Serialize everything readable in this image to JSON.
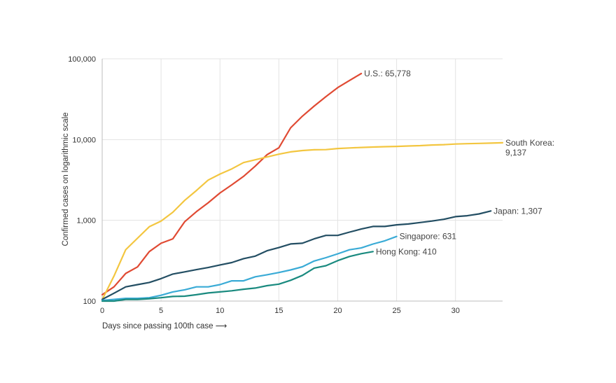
{
  "chart_data": {
    "type": "line",
    "xlabel": "Days since passing 100th case ⟶",
    "ylabel": "Confirmed cases on logarithmic scale",
    "xlim": [
      0,
      34
    ],
    "ylim": [
      100,
      100000
    ],
    "yscale": "log",
    "x_ticks": [
      0,
      5,
      10,
      15,
      20,
      25,
      30
    ],
    "y_ticks": [
      100,
      1000,
      10000,
      100000
    ],
    "y_tick_labels": [
      "100",
      "1,000",
      "10,000",
      "100,000"
    ],
    "grid": "vertical and horizontal",
    "series": [
      {
        "name": "U.S.",
        "end_label": [
          "U.S.: 65,778"
        ],
        "color": "#e04a33",
        "values": [
          120,
          150,
          220,
          265,
          410,
          520,
          590,
          960,
          1280,
          1650,
          2180,
          2750,
          3500,
          4700,
          6500,
          7900,
          14000,
          19500,
          26000,
          34000,
          44000,
          54000,
          65778
        ]
      },
      {
        "name": "South Korea",
        "end_label": [
          "South Korea:",
          "9,137"
        ],
        "color": "#f3c640",
        "values": [
          104,
          204,
          433,
          602,
          833,
          977,
          1261,
          1766,
          2337,
          3150,
          3736,
          4335,
          5186,
          5621,
          6088,
          6593,
          7041,
          7313,
          7478,
          7513,
          7755,
          7869,
          7979,
          8086,
          8162,
          8236,
          8320,
          8413,
          8565,
          8652,
          8799,
          8897,
          8961,
          9037,
          9137
        ]
      },
      {
        "name": "Japan",
        "end_label": [
          "Japan: 1,307"
        ],
        "color": "#234e63",
        "values": [
          105,
          125,
          150,
          160,
          170,
          190,
          216,
          230,
          245,
          260,
          280,
          300,
          335,
          360,
          420,
          460,
          510,
          520,
          590,
          650,
          650,
          715,
          780,
          840,
          840,
          880,
          900,
          940,
          980,
          1030,
          1110,
          1140,
          1200,
          1307
        ]
      },
      {
        "name": "Singapore",
        "end_label": [
          "Singapore: 631"
        ],
        "color": "#3aabd6",
        "values": [
          102,
          105,
          108,
          108,
          110,
          118,
          130,
          138,
          150,
          150,
          160,
          178,
          178,
          200,
          212,
          226,
          243,
          266,
          313,
          345,
          385,
          432,
          455,
          509,
          558,
          631
        ]
      },
      {
        "name": "Hong Kong",
        "end_label": [
          "Hong Kong: 410"
        ],
        "color": "#1a8a7f",
        "values": [
          100,
          100,
          105,
          105,
          107,
          110,
          114,
          115,
          120,
          126,
          130,
          134,
          140,
          145,
          155,
          162,
          181,
          208,
          256,
          274,
          317,
          357,
          386,
          410
        ]
      }
    ]
  }
}
